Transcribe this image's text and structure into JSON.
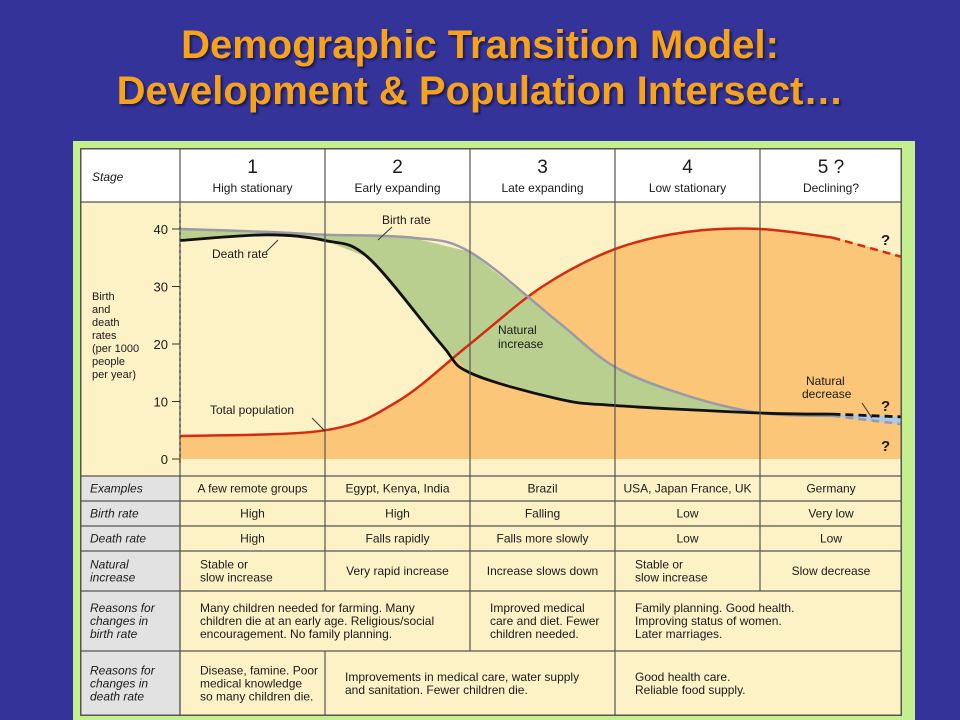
{
  "title": {
    "line1": "Demographic Transition Model:",
    "line2": "Development & Population Intersect…"
  },
  "colors": {
    "background": "#33339a",
    "title": "#f7a21b",
    "frame": "#c4ef8e",
    "header_fill": "#ffffff",
    "plot_fill": "#fdf2c6",
    "population_area": "#fcc678",
    "natural_increase": "#b9cf8f",
    "natural_decrease": "#a9cbe9",
    "population_line": "#d42a10",
    "birth_line": "#9b9aa6",
    "death_line": "#111111"
  },
  "stages": [
    {
      "num": "1",
      "label": "High stationary"
    },
    {
      "num": "2",
      "label": "Early expanding"
    },
    {
      "num": "3",
      "label": "Late expanding"
    },
    {
      "num": "4",
      "label": "Low stationary"
    },
    {
      "num": "5 ?",
      "label": "Declining?"
    }
  ],
  "stage_row_label": "Stage",
  "axis": {
    "ylabel_lines": [
      "Birth",
      "and",
      "death",
      "rates",
      "(per 1000",
      "people",
      "per year)"
    ],
    "ticks": [
      "0",
      "10",
      "20",
      "30",
      "40"
    ]
  },
  "annotations": {
    "birth_rate": "Birth rate",
    "death_rate": "Death rate",
    "natural_increase_1": "Natural",
    "natural_increase_2": "increase",
    "total_population": "Total population",
    "natural_decrease_1": "Natural",
    "natural_decrease_2": "decrease",
    "question": "?"
  },
  "chart_data": {
    "type": "line",
    "x_labels": [
      "1",
      "2",
      "3",
      "4",
      "5 ?"
    ],
    "y_range": [
      0,
      42
    ],
    "series": [
      {
        "name": "Birth rate",
        "x": [
          0,
          0.6,
          1.0,
          1.6,
          2.0,
          2.6,
          3.0,
          3.5,
          4.0,
          4.5,
          5.0
        ],
        "y": [
          40,
          39.5,
          39,
          38.5,
          36,
          24,
          16,
          11,
          8,
          7.5,
          6
        ]
      },
      {
        "name": "Death rate",
        "x": [
          0,
          0.6,
          1.0,
          1.3,
          1.8,
          2.0,
          2.6,
          3.0,
          4.0,
          4.5,
          5.0
        ],
        "y": [
          38,
          39,
          38,
          35,
          20,
          15,
          10.5,
          9.3,
          8,
          7.8,
          7.3
        ]
      },
      {
        "name": "Total population",
        "x": [
          0,
          1.0,
          1.5,
          2.0,
          2.5,
          3.0,
          3.5,
          4.0,
          4.5,
          5.0
        ],
        "y": [
          4,
          5,
          10,
          20,
          30,
          36.5,
          39.5,
          40,
          38.5,
          35
        ]
      }
    ]
  },
  "table": {
    "rows": [
      {
        "label": [
          "Examples"
        ],
        "cells": [
          {
            "span": 1,
            "lines": [
              "A few remote groups"
            ]
          },
          {
            "span": 1,
            "lines": [
              "Egypt, Kenya, India"
            ]
          },
          {
            "span": 1,
            "lines": [
              "Brazil"
            ]
          },
          {
            "span": 1,
            "lines": [
              "USA, Japan France, UK"
            ]
          },
          {
            "span": 1,
            "lines": [
              "Germany"
            ]
          }
        ]
      },
      {
        "label": [
          "Birth rate"
        ],
        "cells": [
          {
            "span": 1,
            "lines": [
              "High"
            ]
          },
          {
            "span": 1,
            "lines": [
              "High"
            ]
          },
          {
            "span": 1,
            "lines": [
              "Falling"
            ]
          },
          {
            "span": 1,
            "lines": [
              "Low"
            ]
          },
          {
            "span": 1,
            "lines": [
              "Very low"
            ]
          }
        ]
      },
      {
        "label": [
          "Death rate"
        ],
        "cells": [
          {
            "span": 1,
            "lines": [
              "High"
            ]
          },
          {
            "span": 1,
            "lines": [
              "Falls rapidly"
            ]
          },
          {
            "span": 1,
            "lines": [
              "Falls more slowly"
            ]
          },
          {
            "span": 1,
            "lines": [
              "Low"
            ]
          },
          {
            "span": 1,
            "lines": [
              "Low"
            ]
          }
        ]
      },
      {
        "label": [
          "Natural",
          "increase"
        ],
        "cells": [
          {
            "span": 1,
            "lines": [
              "Stable or",
              "slow increase"
            ]
          },
          {
            "span": 1,
            "lines": [
              "Very rapid increase"
            ]
          },
          {
            "span": 1,
            "lines": [
              "Increase slows down"
            ]
          },
          {
            "span": 1,
            "lines": [
              "Stable or",
              "slow increase"
            ]
          },
          {
            "span": 1,
            "lines": [
              "Slow decrease"
            ]
          }
        ]
      },
      {
        "label": [
          "Reasons for",
          "changes in",
          "birth rate"
        ],
        "cells": [
          {
            "span": 2,
            "lines": [
              "Many children needed for farming. Many",
              "children die at an early age. Religious/social",
              "encouragement. No family planning."
            ]
          },
          {
            "span": 1,
            "lines": [
              "Improved medical",
              "care and diet. Fewer",
              "children needed."
            ]
          },
          {
            "span": 2,
            "lines": [
              "Family planning. Good health.",
              "Improving status of women.",
              "Later marriages."
            ]
          }
        ]
      },
      {
        "label": [
          "Reasons for",
          "changes in",
          "death rate"
        ],
        "cells": [
          {
            "span": 1,
            "lines": [
              "Disease, famine. Poor",
              "medical knowledge",
              "so many children die."
            ]
          },
          {
            "span": 2,
            "lines": [
              "Improvements in medical care, water supply",
              "and sanitation. Fewer children die."
            ]
          },
          {
            "span": 2,
            "lines": [
              "Good health care.",
              "Reliable food supply."
            ]
          }
        ]
      }
    ]
  }
}
